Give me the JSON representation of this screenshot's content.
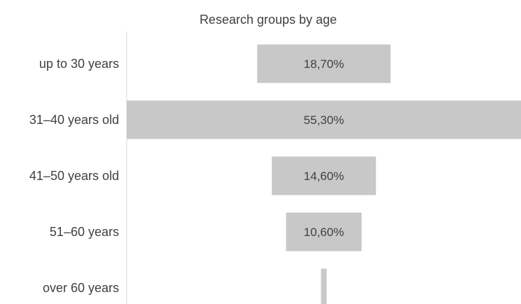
{
  "chart_data": {
    "type": "bar",
    "orientation": "horizontal",
    "style": "funnel",
    "title": "Research groups by age",
    "categories": [
      "up to 30 years",
      "31–40 years old",
      "41–50 years old",
      "51–60 years",
      "over 60 years"
    ],
    "values": [
      18.7,
      55.3,
      14.6,
      10.6,
      0.8
    ],
    "value_labels": [
      "18,70%",
      "55,30%",
      "14,60%",
      "10,60%",
      ""
    ],
    "unit": "%",
    "legend": "none",
    "grid": false,
    "colors": {
      "bar": "#c8c8c8",
      "axis": "#d9d9d9",
      "text": "#404040"
    }
  }
}
